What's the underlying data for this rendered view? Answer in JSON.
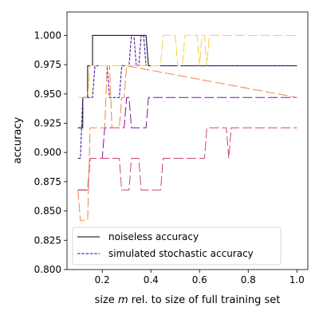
{
  "chart_data": {
    "type": "line",
    "xlabel": "size m rel. to size of full training set",
    "xlabel_parts": [
      "size ",
      "m",
      " rel. to size of full training set"
    ],
    "ylabel": "accuracy",
    "xlim": [
      0.055,
      1.045
    ],
    "ylim": [
      0.8,
      1.02
    ],
    "xticks": [
      0.2,
      0.4,
      0.6,
      0.8,
      1.0
    ],
    "xtick_labels": [
      "0.2",
      "0.4",
      "0.6",
      "0.8",
      "1.0"
    ],
    "yticks": [
      0.8,
      0.825,
      0.85,
      0.875,
      0.9,
      0.925,
      0.95,
      0.975,
      1.0
    ],
    "ytick_labels": [
      "0.800",
      "0.825",
      "0.850",
      "0.875",
      "0.900",
      "0.925",
      "0.950",
      "0.975",
      "1.000"
    ],
    "grid": false,
    "legend_position": "lower-left",
    "legend": [
      {
        "label": "noiseless accuracy",
        "color": "#000000",
        "style": "solid"
      },
      {
        "label": "simulated stochastic accuracy",
        "color": "#3b049a",
        "style": "dashed"
      }
    ],
    "series": [
      {
        "color": "#000000",
        "style": "solid",
        "legend": true,
        "points": [
          [
            0.1,
            0.921
          ],
          [
            0.12,
            0.921
          ],
          [
            0.12,
            0.947
          ],
          [
            0.14,
            0.947
          ],
          [
            0.14,
            0.974
          ],
          [
            0.16,
            0.974
          ],
          [
            0.16,
            1.0
          ],
          [
            0.38,
            1.0
          ],
          [
            0.39,
            0.974
          ],
          [
            1.0,
            0.974
          ]
        ]
      },
      {
        "color": "#3b049a",
        "style": "dashed",
        "legend": true,
        "points": [
          [
            0.1,
            0.895
          ],
          [
            0.11,
            0.895
          ],
          [
            0.12,
            0.947
          ],
          [
            0.16,
            0.947
          ],
          [
            0.17,
            0.974
          ],
          [
            0.22,
            0.974
          ],
          [
            0.23,
            0.947
          ],
          [
            0.27,
            0.947
          ],
          [
            0.28,
            0.974
          ],
          [
            0.31,
            0.974
          ],
          [
            0.32,
            1.0
          ],
          [
            0.33,
            1.0
          ],
          [
            0.34,
            0.974
          ],
          [
            0.35,
            0.974
          ],
          [
            0.36,
            1.0
          ],
          [
            0.37,
            1.0
          ],
          [
            0.38,
            0.974
          ],
          [
            1.0,
            0.974
          ]
        ]
      },
      {
        "color": "#8b0aa5",
        "style": "dashed",
        "legend": false,
        "points": [
          [
            0.1,
            0.868
          ],
          [
            0.14,
            0.868
          ],
          [
            0.15,
            0.895
          ],
          [
            0.2,
            0.895
          ],
          [
            0.21,
            0.921
          ],
          [
            0.29,
            0.921
          ],
          [
            0.3,
            0.947
          ],
          [
            0.31,
            0.947
          ],
          [
            0.32,
            0.921
          ],
          [
            0.38,
            0.921
          ],
          [
            0.39,
            0.947
          ],
          [
            1.0,
            0.947
          ]
        ]
      },
      {
        "color": "#cc4778",
        "style": "dashed",
        "legend": false,
        "points": [
          [
            0.1,
            0.868
          ],
          [
            0.14,
            0.868
          ],
          [
            0.15,
            0.895
          ],
          [
            0.27,
            0.895
          ],
          [
            0.28,
            0.868
          ],
          [
            0.31,
            0.868
          ],
          [
            0.32,
            0.895
          ],
          [
            0.35,
            0.895
          ],
          [
            0.36,
            0.868
          ],
          [
            0.44,
            0.868
          ],
          [
            0.45,
            0.895
          ],
          [
            0.6,
            0.895
          ],
          [
            0.62,
            0.895
          ],
          [
            0.63,
            0.921
          ],
          [
            0.71,
            0.921
          ],
          [
            0.72,
            0.895
          ],
          [
            0.73,
            0.921
          ],
          [
            1.0,
            0.921
          ]
        ]
      },
      {
        "color": "#f0824b",
        "style": "dashed",
        "legend": false,
        "points": [
          [
            0.1,
            0.868
          ],
          [
            0.11,
            0.842
          ],
          [
            0.14,
            0.842
          ],
          [
            0.15,
            0.921
          ],
          [
            0.21,
            0.921
          ],
          [
            0.22,
            0.974
          ],
          [
            0.23,
            0.974
          ],
          [
            0.24,
            0.921
          ],
          [
            0.27,
            0.921
          ],
          [
            0.28,
            0.947
          ],
          [
            0.29,
            0.947
          ],
          [
            0.3,
            0.974
          ],
          [
            1.0,
            0.947
          ]
        ]
      },
      {
        "color": "#f7d03c",
        "style": "dashed",
        "legend": false,
        "points": [
          [
            0.1,
            0.947
          ],
          [
            0.14,
            0.947
          ],
          [
            0.15,
            0.974
          ],
          [
            0.44,
            0.974
          ],
          [
            0.45,
            1.0
          ],
          [
            0.5,
            1.0
          ],
          [
            0.51,
            0.974
          ],
          [
            0.53,
            0.974
          ],
          [
            0.54,
            1.0
          ],
          [
            0.59,
            1.0
          ],
          [
            0.6,
            0.974
          ],
          [
            0.61,
            1.0
          ],
          [
            0.62,
            1.0
          ],
          [
            0.63,
            0.974
          ],
          [
            0.64,
            1.0
          ],
          [
            1.0,
            1.0
          ]
        ]
      }
    ]
  }
}
